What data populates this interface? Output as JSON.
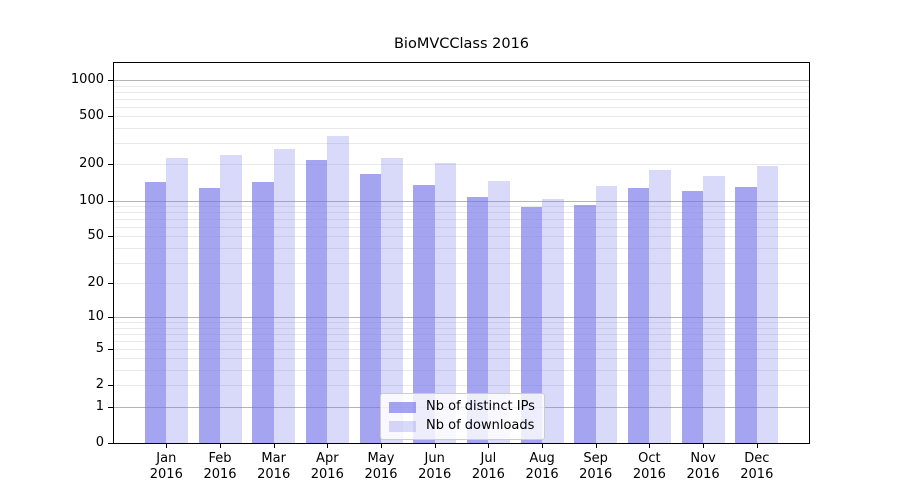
{
  "chart_data": {
    "type": "bar",
    "title": "BioMVCClass 2016",
    "categories": [
      "Jan 2016",
      "Feb 2016",
      "Mar 2016",
      "Apr 2016",
      "May 2016",
      "Jun 2016",
      "Jul 2016",
      "Aug 2016",
      "Sep 2016",
      "Oct 2016",
      "Nov 2016",
      "Dec 2016"
    ],
    "series": [
      {
        "name": "Nb of distinct IPs",
        "color": "rgba(117,117,232,0.66)",
        "values": [
          144,
          128,
          144,
          217,
          166,
          134,
          107,
          88,
          92,
          128,
          120,
          129
        ]
      },
      {
        "name": "Nb of downloads",
        "color": "rgba(117,117,232,0.28)",
        "values": [
          226,
          240,
          268,
          341,
          228,
          207,
          146,
          102,
          131,
          181,
          159,
          193
        ]
      }
    ],
    "yscale": "log1p",
    "ylim": [
      0,
      1381
    ],
    "yticks": [
      0,
      1,
      2,
      5,
      10,
      20,
      50,
      100,
      200,
      500,
      1000
    ],
    "gridlines": {
      "major": [
        1,
        10,
        100,
        1000
      ],
      "minor": [
        2,
        3,
        4,
        5,
        6,
        7,
        8,
        9,
        20,
        30,
        40,
        50,
        60,
        70,
        80,
        90,
        200,
        300,
        400,
        500,
        600,
        700,
        800,
        900
      ]
    },
    "grid": "on",
    "legend_position": "lower center",
    "xlabel": "",
    "ylabel": "",
    "axis_color": "#000000",
    "major_grid_color": "#b4b4b4",
    "minor_grid_color": "#e9e9e9"
  }
}
